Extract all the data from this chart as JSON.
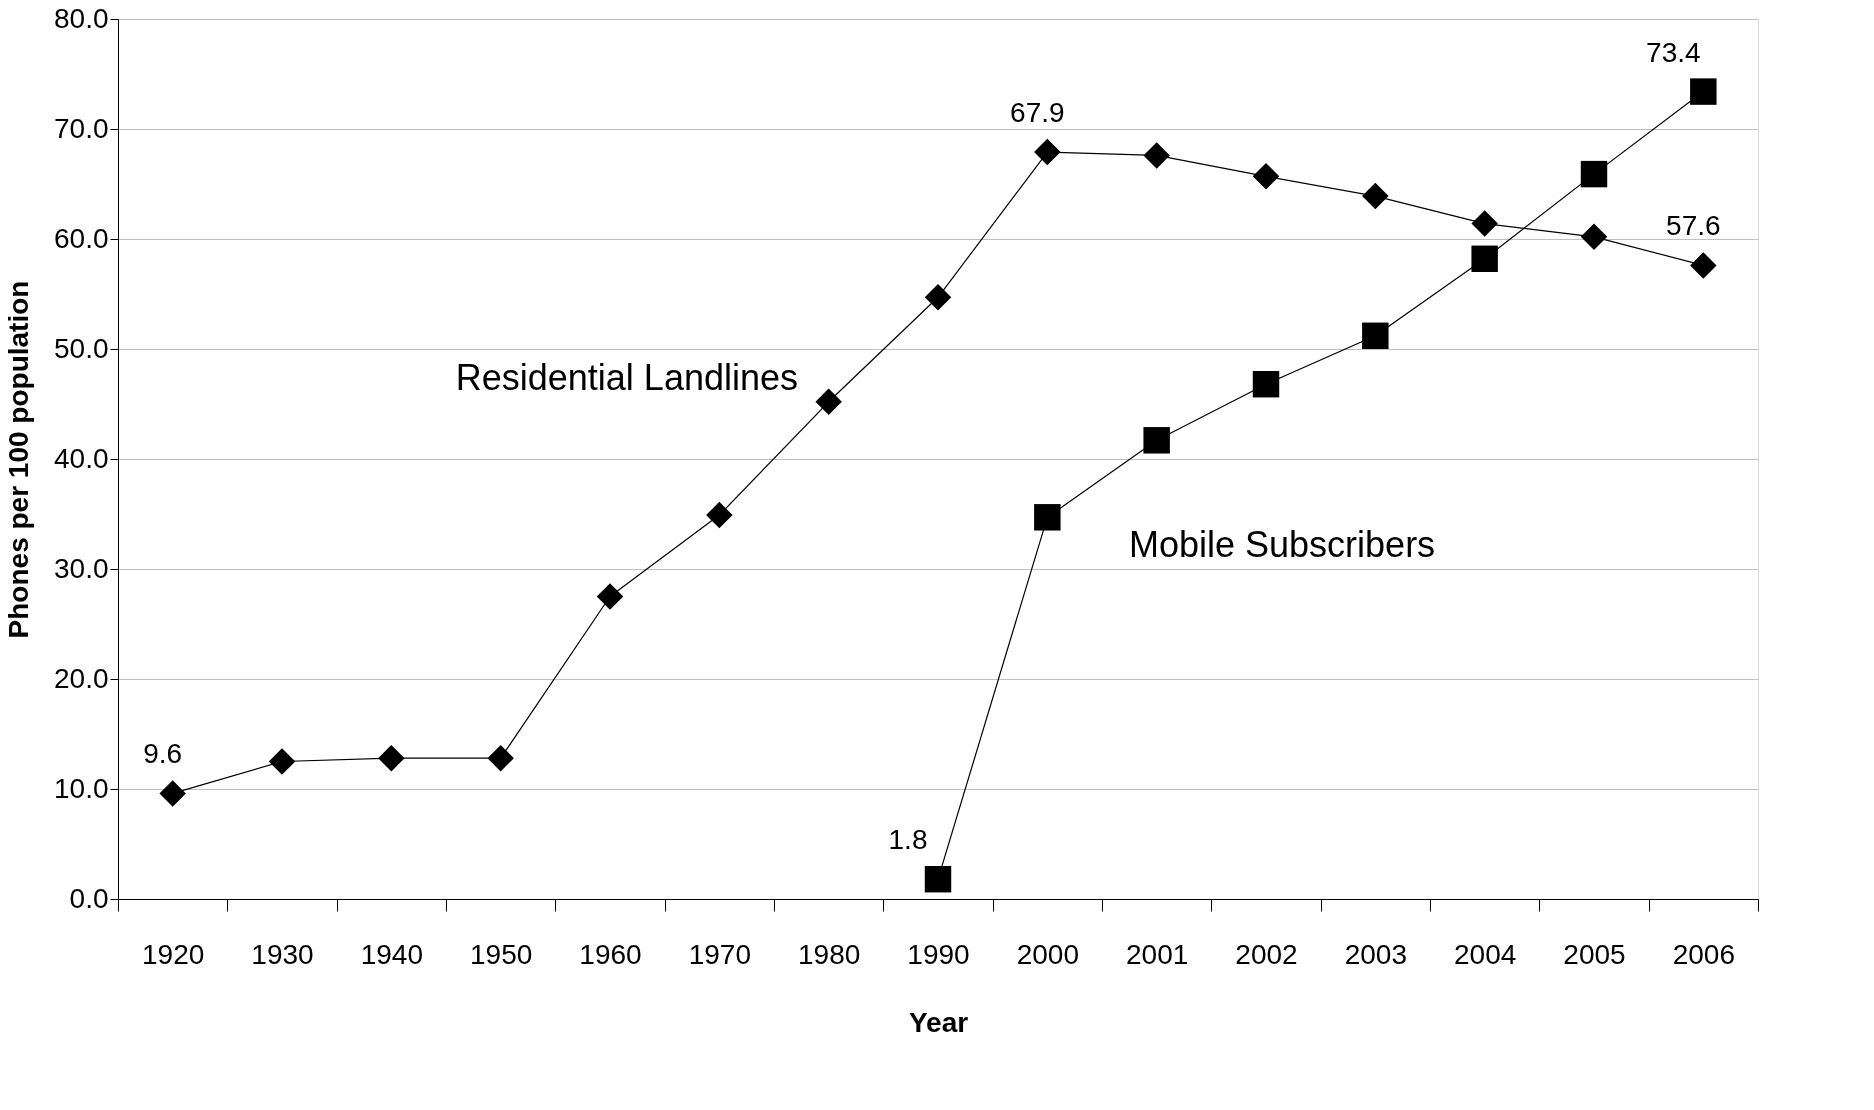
{
  "chart_data": {
    "type": "line",
    "xlabel": "Year",
    "ylabel": "Phones per 100 population",
    "categories": [
      "1920",
      "1930",
      "1940",
      "1950",
      "1960",
      "1970",
      "1980",
      "1990",
      "2000",
      "2001",
      "2002",
      "2003",
      "2004",
      "2005",
      "2006"
    ],
    "series": [
      {
        "name": "Residential  Landlines",
        "color": "#000000",
        "marker": "diamond",
        "values": [
          9.6,
          12.5,
          12.8,
          12.8,
          27.5,
          34.9,
          45.2,
          54.7,
          67.9,
          67.6,
          65.7,
          63.9,
          61.4,
          60.2,
          57.6
        ],
        "value_labels": [
          "9.6",
          null,
          null,
          null,
          null,
          null,
          null,
          null,
          "67.9",
          null,
          null,
          null,
          null,
          null,
          "57.6"
        ]
      },
      {
        "name": "Mobile Subscribers",
        "color": "#000000",
        "marker": "square",
        "values": [
          null,
          null,
          null,
          null,
          null,
          null,
          null,
          1.8,
          34.7,
          41.7,
          46.8,
          51.2,
          58.2,
          65.9,
          73.4
        ],
        "value_labels": [
          null,
          null,
          null,
          null,
          null,
          null,
          null,
          "1.8",
          null,
          null,
          null,
          null,
          null,
          null,
          "73.4"
        ]
      }
    ],
    "ylim": [
      0,
      80
    ],
    "yticks": [
      {
        "value": 0,
        "label": "0.0"
      },
      {
        "value": 10,
        "label": "10.0"
      },
      {
        "value": 20,
        "label": "20.0"
      },
      {
        "value": 30,
        "label": "30.0"
      },
      {
        "value": 40,
        "label": "40.0"
      },
      {
        "value": 50,
        "label": "50.0"
      },
      {
        "value": 60,
        "label": "60.0"
      },
      {
        "value": 70,
        "label": "70.0"
      },
      {
        "value": 80,
        "label": "80.0"
      }
    ],
    "grid": "y",
    "legend": false,
    "line_style": "solid"
  }
}
